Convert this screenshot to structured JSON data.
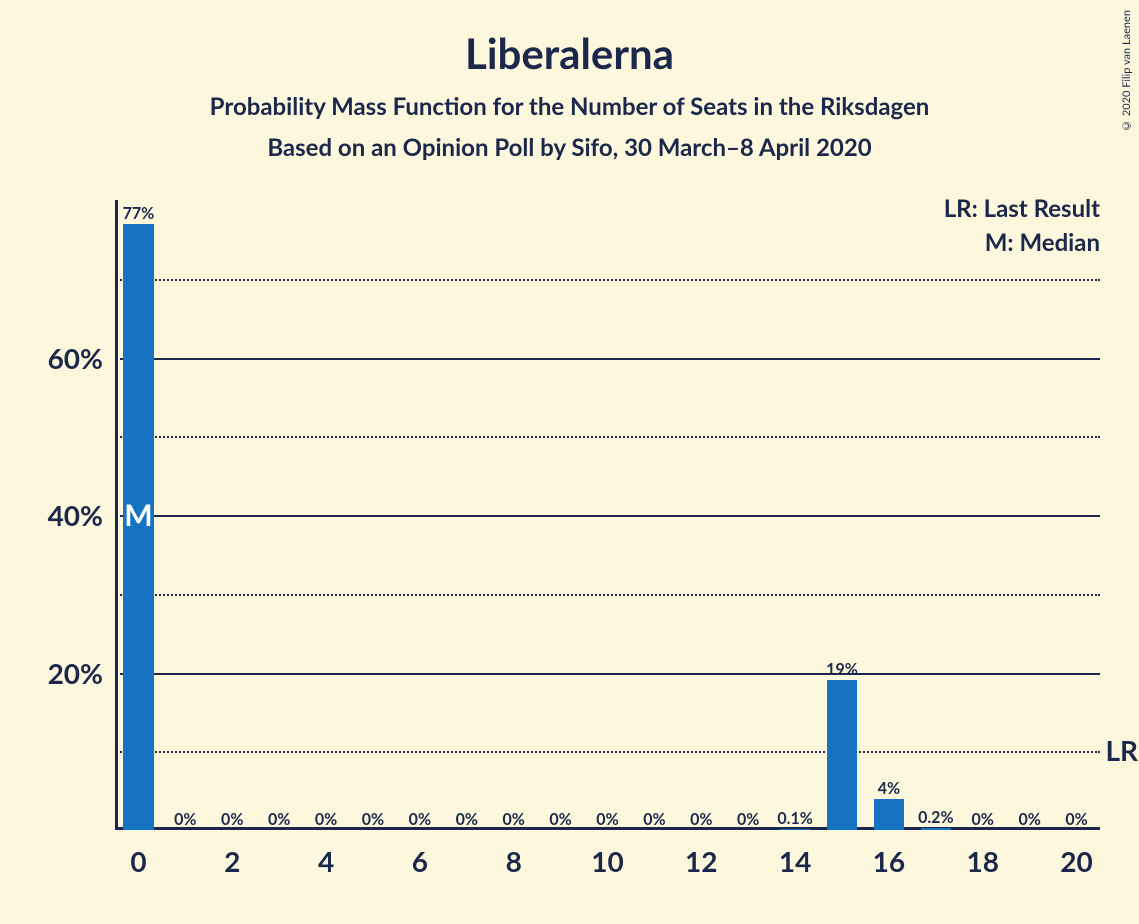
{
  "title": "Liberalerna",
  "subtitle1": "Probability Mass Function for the Number of Seats in the Riksdagen",
  "subtitle2": "Based on an Opinion Poll by Sifo, 30 March–8 April 2020",
  "copyright": "© 2020 Filip van Laenen",
  "legend_lr": "LR: Last Result",
  "legend_m": "M: Median",
  "chart": {
    "type": "bar",
    "background_color": "#fdf8dd",
    "text_color": "#1b274b",
    "bar_color": "#1673c2",
    "median_text_color": "#ffffff",
    "xlim": [
      -0.5,
      20.5
    ],
    "ylim": [
      0,
      80
    ],
    "y_major_ticks": [
      20,
      40,
      60
    ],
    "y_major_labels": [
      "20%",
      "40%",
      "60%"
    ],
    "y_minor_ticks": [
      10,
      30,
      50,
      70
    ],
    "x_categories": [
      0,
      1,
      2,
      3,
      4,
      5,
      6,
      7,
      8,
      9,
      10,
      11,
      12,
      13,
      14,
      15,
      16,
      17,
      18,
      19,
      20
    ],
    "x_tick_positions": [
      0,
      2,
      4,
      6,
      8,
      10,
      12,
      14,
      16,
      18,
      20
    ],
    "x_tick_labels": [
      "0",
      "2",
      "4",
      "6",
      "8",
      "10",
      "12",
      "14",
      "16",
      "18",
      "20"
    ],
    "values": [
      77,
      0,
      0,
      0,
      0,
      0,
      0,
      0,
      0,
      0,
      0,
      0,
      0,
      0,
      0.1,
      19,
      4,
      0.2,
      0,
      0,
      0
    ],
    "bar_labels": [
      "77%",
      "0%",
      "0%",
      "0%",
      "0%",
      "0%",
      "0%",
      "0%",
      "0%",
      "0%",
      "0%",
      "0%",
      "0%",
      "0%",
      "0.1%",
      "19%",
      "4%",
      "0.2%",
      "0%",
      "0%",
      "0%"
    ],
    "bar_width": 0.65,
    "median_index": 0,
    "median_label": "M",
    "lr_label": "LR",
    "title_fontsize": 42,
    "subtitle_fontsize": 24,
    "axis_label_fontsize": 28,
    "bar_label_fontsize": 16,
    "legend_fontsize": 24
  }
}
